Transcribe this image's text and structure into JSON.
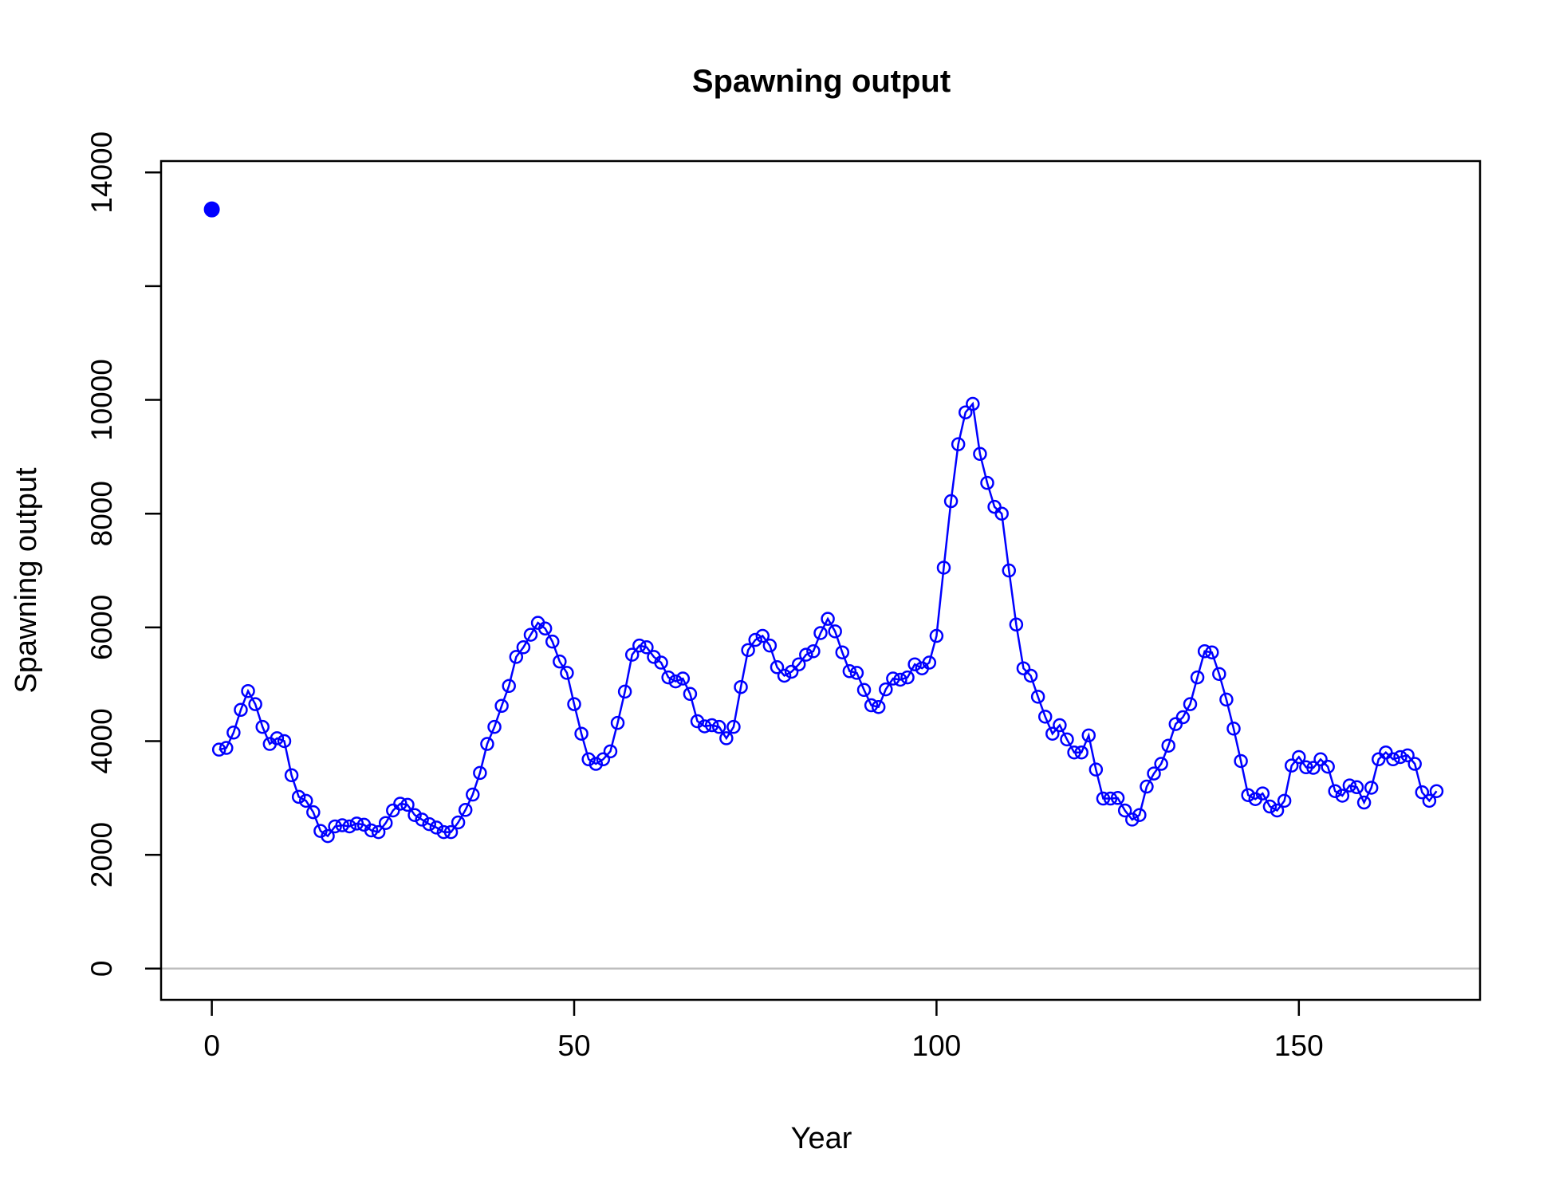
{
  "chart_data": {
    "type": "line",
    "title": "Spawning output",
    "xlabel": "Year",
    "ylabel": "Spawning output",
    "xlim": [
      -7,
      175
    ],
    "ylim": [
      -550,
      14200
    ],
    "x_ticks": [
      0,
      50,
      100,
      150
    ],
    "y_ticks": [
      0,
      2000,
      4000,
      6000,
      8000,
      10000,
      12000,
      14000
    ],
    "y_tick_labels": [
      "0",
      "2000",
      "4000",
      "6000",
      "8000",
      "10000",
      "",
      "14000"
    ],
    "reference_line": 0,
    "grid": false,
    "legend": "none",
    "colors": {
      "series": "#0000ff",
      "reference_line": "#bebebe",
      "axes": "#000000"
    },
    "virgin": {
      "x": 0,
      "y": 13350,
      "marker": "filled-circle"
    },
    "series": [
      {
        "marker": "open-circle",
        "x": [
          1,
          2,
          3,
          4,
          5,
          6,
          7,
          8,
          9,
          10,
          11,
          12,
          13,
          14,
          15,
          16,
          17,
          18,
          19,
          20,
          21,
          22,
          23,
          24,
          25,
          26,
          27,
          28,
          29,
          30,
          31,
          32,
          33,
          34,
          35,
          36,
          37,
          38,
          39,
          40,
          41,
          42,
          43,
          44,
          45,
          46,
          47,
          48,
          49,
          50,
          51,
          52,
          53,
          54,
          55,
          56,
          57,
          58,
          59,
          60,
          61,
          62,
          63,
          64,
          65,
          66,
          67,
          68,
          69,
          70,
          71,
          72,
          73,
          74,
          75,
          76,
          77,
          78,
          79,
          80,
          81,
          82,
          83,
          84,
          85,
          86,
          87,
          88,
          89,
          90,
          91,
          92,
          93,
          94,
          95,
          96,
          97,
          98,
          99,
          100,
          101,
          102,
          103,
          104,
          105,
          106,
          107,
          108,
          109,
          110,
          111,
          112,
          113,
          114,
          115,
          116,
          117,
          118,
          119,
          120,
          121,
          122,
          123,
          124,
          125,
          126,
          127,
          128,
          129,
          130,
          131,
          132,
          133,
          134,
          135,
          136,
          137,
          138,
          139,
          140,
          141,
          142,
          143,
          144,
          145,
          146,
          147,
          148,
          149,
          150,
          151,
          152,
          153,
          154,
          155,
          156,
          157,
          158,
          159,
          160,
          161,
          162,
          163,
          164,
          165,
          166,
          167,
          168,
          169
        ],
        "y": [
          3850,
          3880,
          4150,
          4550,
          4880,
          4650,
          4250,
          3950,
          4050,
          4000,
          3400,
          3020,
          2950,
          2750,
          2420,
          2330,
          2500,
          2520,
          2500,
          2550,
          2530,
          2430,
          2400,
          2560,
          2780,
          2900,
          2880,
          2700,
          2620,
          2540,
          2480,
          2400,
          2400,
          2570,
          2790,
          3060,
          3440,
          3950,
          4250,
          4620,
          4970,
          5480,
          5650,
          5870,
          6080,
          5980,
          5750,
          5400,
          5200,
          4650,
          4130,
          3680,
          3600,
          3680,
          3820,
          4320,
          4870,
          5520,
          5680,
          5650,
          5480,
          5380,
          5120,
          5050,
          5100,
          4830,
          4350,
          4260,
          4280,
          4250,
          4050,
          4250,
          4950,
          5600,
          5780,
          5850,
          5680,
          5300,
          5150,
          5220,
          5350,
          5520,
          5580,
          5900,
          6150,
          5930,
          5560,
          5230,
          5200,
          4900,
          4630,
          4600,
          4910,
          5100,
          5080,
          5120,
          5350,
          5280,
          5380,
          5850,
          7050,
          8220,
          9220,
          9780,
          9930,
          9050,
          8540,
          8120,
          8000,
          7000,
          6050,
          5280,
          5150,
          4780,
          4430,
          4130,
          4280,
          4030,
          3800,
          3800,
          4100,
          3500,
          2990,
          2990,
          3000,
          2780,
          2620,
          2700,
          3200,
          3430,
          3600,
          3920,
          4300,
          4420,
          4650,
          5120,
          5580,
          5560,
          5180,
          4730,
          4220,
          3650,
          3050,
          2980,
          3080,
          2850,
          2780,
          2950,
          3570,
          3720,
          3540,
          3530,
          3680,
          3550,
          3120,
          3040,
          3220,
          3190,
          2920,
          3180,
          3680,
          3800,
          3680,
          3720,
          3750,
          3600,
          3100,
          2950,
          3120
        ]
      }
    ]
  }
}
